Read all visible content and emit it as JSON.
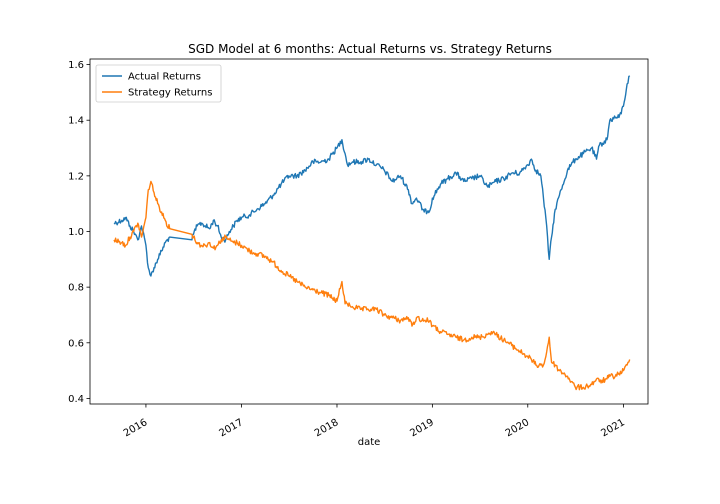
{
  "chart_data": {
    "type": "line",
    "title": "SGD Model at 6 months: Actual Returns vs. Strategy Returns",
    "xlabel": "date",
    "ylabel": "",
    "xlim": [
      "2015-06-01",
      "2021-04-05"
    ],
    "ylim": [
      0.38,
      1.62
    ],
    "x_ticks": [
      {
        "date": "2016-01-01",
        "label": "2016"
      },
      {
        "date": "2017-01-01",
        "label": "2017"
      },
      {
        "date": "2018-01-01",
        "label": "2018"
      },
      {
        "date": "2019-01-01",
        "label": "2019"
      },
      {
        "date": "2020-01-01",
        "label": "2020"
      },
      {
        "date": "2021-01-01",
        "label": "2021"
      }
    ],
    "y_ticks": [
      0.4,
      0.6,
      0.8,
      1.0,
      1.2,
      1.4,
      1.6
    ],
    "legend_position": "top-left",
    "grid": false,
    "series": [
      {
        "name": "Actual Returns",
        "color": "#1f77b4",
        "x": [
          "2015-09-01",
          "2015-10-01",
          "2015-10-15",
          "2015-11-01",
          "2015-11-15",
          "2015-12-01",
          "2015-12-15",
          "2016-01-01",
          "2016-01-10",
          "2016-01-20",
          "2016-02-01",
          "2016-02-15",
          "2016-03-01",
          "2016-03-15",
          "2016-04-01",
          "2016-06-25",
          "2016-07-01",
          "2016-07-15",
          "2016-08-01",
          "2016-08-15",
          "2016-09-01",
          "2016-09-15",
          "2016-10-01",
          "2016-10-15",
          "2016-11-01",
          "2016-11-15",
          "2016-12-01",
          "2016-12-15",
          "2017-01-01",
          "2017-02-01",
          "2017-03-01",
          "2017-04-01",
          "2017-05-01",
          "2017-06-01",
          "2017-07-01",
          "2017-08-01",
          "2017-09-01",
          "2017-10-01",
          "2017-11-01",
          "2017-12-01",
          "2017-12-15",
          "2018-01-01",
          "2018-01-20",
          "2018-02-01",
          "2018-02-10",
          "2018-03-01",
          "2018-04-01",
          "2018-05-01",
          "2018-06-01",
          "2018-07-01",
          "2018-08-01",
          "2018-09-01",
          "2018-10-01",
          "2018-10-15",
          "2018-11-01",
          "2018-12-01",
          "2018-12-24",
          "2019-01-01",
          "2019-02-01",
          "2019-03-01",
          "2019-04-01",
          "2019-05-01",
          "2019-06-01",
          "2019-07-01",
          "2019-08-01",
          "2019-08-15",
          "2019-09-01",
          "2019-10-01",
          "2019-11-01",
          "2019-12-01",
          "2020-01-01",
          "2020-01-15",
          "2020-02-01",
          "2020-02-20",
          "2020-03-01",
          "2020-03-10",
          "2020-03-23",
          "2020-04-01",
          "2020-04-15",
          "2020-05-01",
          "2020-06-01",
          "2020-06-15",
          "2020-07-01",
          "2020-08-01",
          "2020-09-01",
          "2020-09-20",
          "2020-10-01",
          "2020-10-30",
          "2020-11-10",
          "2020-12-01",
          "2020-12-15",
          "2021-01-01",
          "2021-01-15",
          "2021-01-25"
        ],
        "y": [
          1.03,
          1.04,
          1.05,
          1.02,
          1.0,
          0.97,
          1.02,
          0.95,
          0.87,
          0.84,
          0.87,
          0.9,
          0.93,
          0.96,
          0.98,
          0.97,
          0.99,
          1.02,
          1.03,
          1.02,
          1.01,
          1.04,
          1.02,
          0.98,
          0.97,
          1.0,
          1.02,
          1.04,
          1.05,
          1.06,
          1.08,
          1.1,
          1.13,
          1.17,
          1.2,
          1.2,
          1.22,
          1.25,
          1.25,
          1.26,
          1.28,
          1.3,
          1.33,
          1.28,
          1.24,
          1.25,
          1.25,
          1.26,
          1.24,
          1.22,
          1.18,
          1.2,
          1.15,
          1.1,
          1.12,
          1.07,
          1.08,
          1.12,
          1.17,
          1.19,
          1.21,
          1.18,
          1.19,
          1.2,
          1.16,
          1.17,
          1.18,
          1.19,
          1.21,
          1.21,
          1.24,
          1.26,
          1.22,
          1.2,
          1.12,
          1.05,
          0.9,
          0.98,
          1.08,
          1.13,
          1.22,
          1.24,
          1.26,
          1.28,
          1.3,
          1.26,
          1.31,
          1.33,
          1.4,
          1.41,
          1.41,
          1.45,
          1.53,
          1.56
        ]
      },
      {
        "name": "Strategy Returns",
        "color": "#ff7f0e",
        "x": [
          "2015-09-01",
          "2015-10-01",
          "2015-10-15",
          "2015-11-01",
          "2015-11-15",
          "2015-12-01",
          "2015-12-15",
          "2016-01-01",
          "2016-01-10",
          "2016-01-20",
          "2016-02-01",
          "2016-02-15",
          "2016-03-01",
          "2016-03-15",
          "2016-04-01",
          "2016-06-25",
          "2016-07-01",
          "2016-07-15",
          "2016-08-01",
          "2016-08-15",
          "2016-09-01",
          "2016-09-15",
          "2016-10-01",
          "2016-10-15",
          "2016-11-01",
          "2016-11-15",
          "2016-12-01",
          "2016-12-15",
          "2017-01-01",
          "2017-02-01",
          "2017-03-01",
          "2017-04-01",
          "2017-05-01",
          "2017-06-01",
          "2017-07-01",
          "2017-08-01",
          "2017-09-01",
          "2017-10-01",
          "2017-11-01",
          "2017-12-01",
          "2017-12-15",
          "2018-01-01",
          "2018-01-20",
          "2018-02-01",
          "2018-02-10",
          "2018-03-01",
          "2018-04-01",
          "2018-05-01",
          "2018-06-01",
          "2018-07-01",
          "2018-08-01",
          "2018-09-01",
          "2018-10-01",
          "2018-10-15",
          "2018-11-01",
          "2018-12-01",
          "2018-12-24",
          "2019-01-01",
          "2019-02-01",
          "2019-03-01",
          "2019-04-01",
          "2019-05-01",
          "2019-06-01",
          "2019-07-01",
          "2019-08-01",
          "2019-08-15",
          "2019-09-01",
          "2019-10-01",
          "2019-11-01",
          "2019-12-01",
          "2020-01-01",
          "2020-01-15",
          "2020-02-01",
          "2020-02-20",
          "2020-03-01",
          "2020-03-10",
          "2020-03-23",
          "2020-04-01",
          "2020-04-15",
          "2020-05-01",
          "2020-06-01",
          "2020-06-15",
          "2020-07-01",
          "2020-08-01",
          "2020-09-01",
          "2020-09-20",
          "2020-10-01",
          "2020-10-30",
          "2020-11-10",
          "2020-12-01",
          "2020-12-15",
          "2021-01-01",
          "2021-01-15",
          "2021-01-25"
        ],
        "y": [
          0.97,
          0.96,
          0.95,
          0.98,
          1.0,
          1.03,
          0.98,
          1.05,
          1.15,
          1.18,
          1.14,
          1.1,
          1.07,
          1.04,
          1.01,
          0.99,
          0.98,
          0.96,
          0.95,
          0.95,
          0.96,
          0.94,
          0.95,
          0.97,
          0.98,
          0.97,
          0.96,
          0.96,
          0.95,
          0.93,
          0.92,
          0.91,
          0.89,
          0.86,
          0.84,
          0.82,
          0.8,
          0.79,
          0.78,
          0.77,
          0.76,
          0.75,
          0.82,
          0.74,
          0.74,
          0.73,
          0.72,
          0.72,
          0.72,
          0.7,
          0.69,
          0.68,
          0.69,
          0.66,
          0.69,
          0.68,
          0.68,
          0.66,
          0.64,
          0.63,
          0.62,
          0.61,
          0.62,
          0.62,
          0.63,
          0.64,
          0.63,
          0.61,
          0.59,
          0.57,
          0.55,
          0.54,
          0.52,
          0.52,
          0.52,
          0.55,
          0.62,
          0.53,
          0.52,
          0.5,
          0.48,
          0.46,
          0.44,
          0.44,
          0.45,
          0.47,
          0.46,
          0.47,
          0.48,
          0.48,
          0.49,
          0.5,
          0.52,
          0.54
        ]
      }
    ]
  }
}
